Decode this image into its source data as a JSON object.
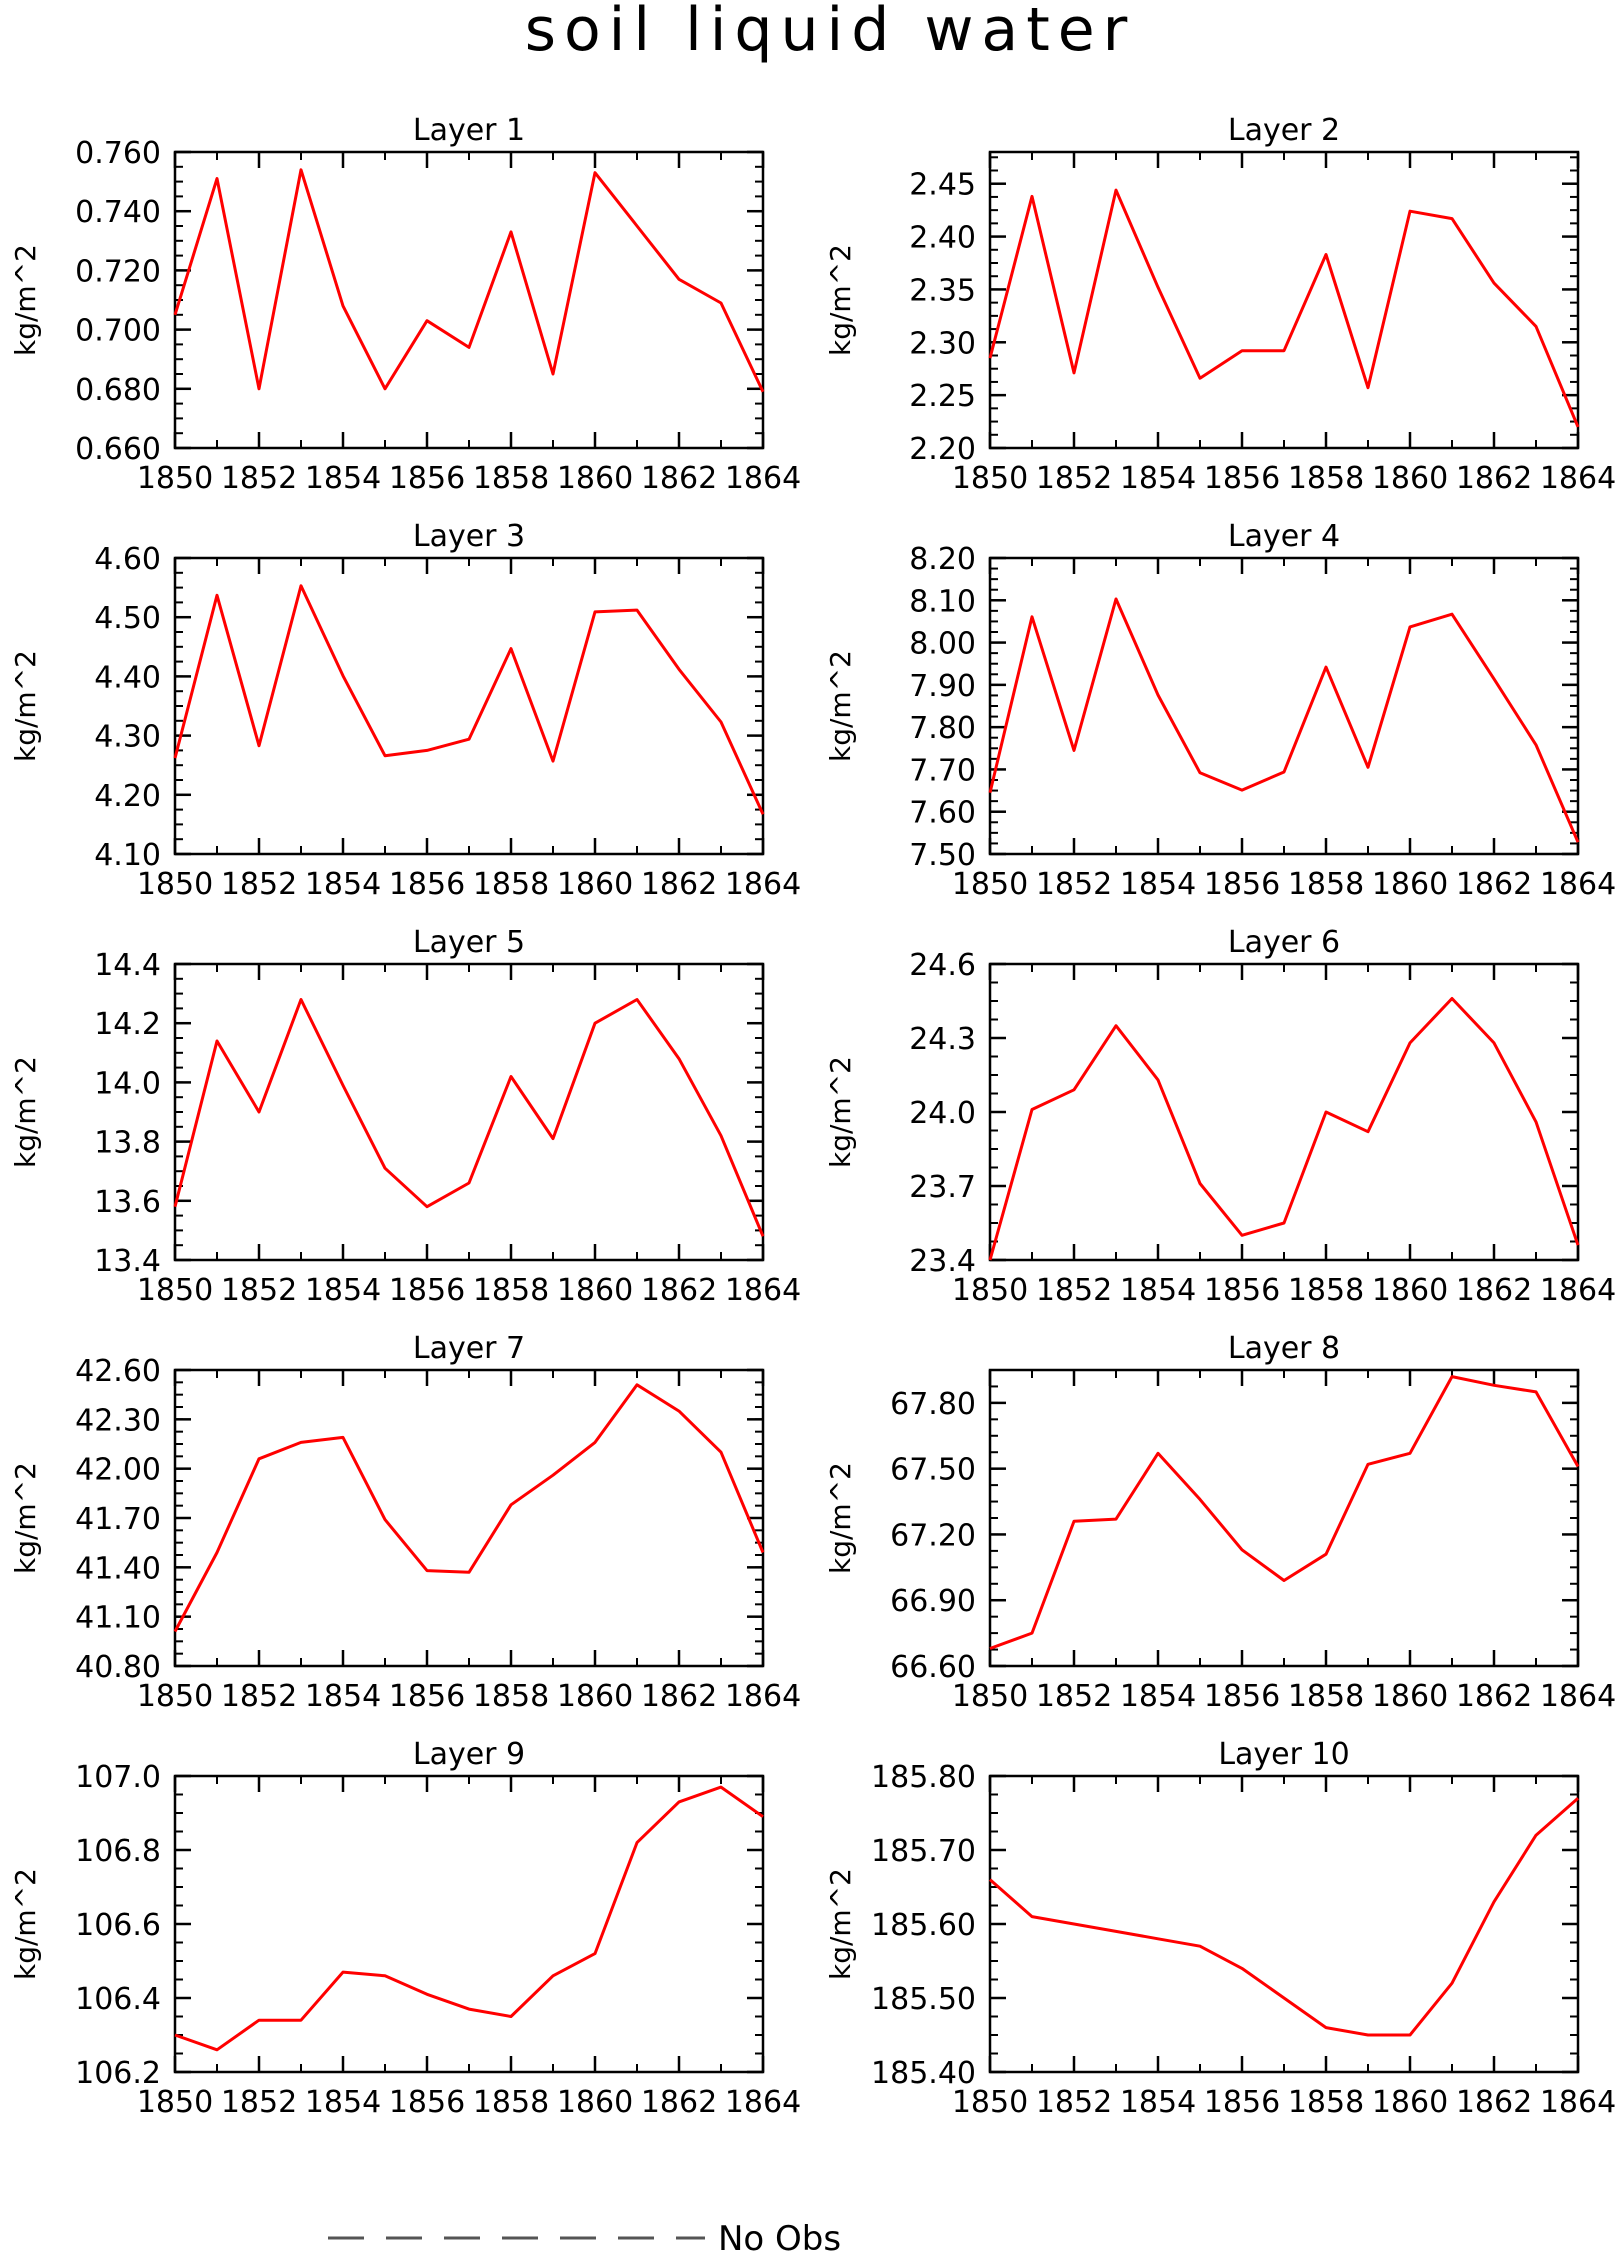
{
  "title": "soil liquid water",
  "legend": {
    "label": "No Obs",
    "placement": "bottom-center"
  },
  "colors": {
    "series": "#ff0000",
    "axis": "#000000",
    "legend_line": "#555555"
  },
  "chart_data": [
    {
      "type": "line",
      "title": "Layer 1",
      "ylabel": "kg/m^2",
      "xlabel": "",
      "x": [
        1850,
        1851,
        1852,
        1853,
        1854,
        1855,
        1856,
        1857,
        1858,
        1859,
        1860,
        1861,
        1862,
        1863,
        1864
      ],
      "xticks": [
        "1850",
        "1852",
        "1854",
        "1856",
        "1858",
        "1860",
        "1862",
        "1864"
      ],
      "xlim": [
        1850,
        1864
      ],
      "ylim": [
        0.66,
        0.76
      ],
      "yticks": [
        "0.660",
        "0.680",
        "0.700",
        "0.720",
        "0.740",
        "0.760"
      ],
      "yminor": 0.005,
      "series": [
        {
          "values": [
            0.705,
            0.751,
            0.68,
            0.754,
            0.708,
            0.68,
            0.703,
            0.694,
            0.733,
            0.685,
            0.753,
            0.735,
            0.717,
            0.709,
            0.679
          ]
        }
      ]
    },
    {
      "type": "line",
      "title": "Layer 2",
      "ylabel": "kg/m^2",
      "xlabel": "",
      "x": [
        1850,
        1851,
        1852,
        1853,
        1854,
        1855,
        1856,
        1857,
        1858,
        1859,
        1860,
        1861,
        1862,
        1863,
        1864
      ],
      "xticks": [
        "1850",
        "1852",
        "1854",
        "1856",
        "1858",
        "1860",
        "1862",
        "1864"
      ],
      "xlim": [
        1850,
        1864
      ],
      "ylim": [
        2.2,
        2.48
      ],
      "yticks": [
        "2.20",
        "2.25",
        "2.30",
        "2.35",
        "2.40",
        "2.45"
      ],
      "yminor": 0.0125,
      "series": [
        {
          "values": [
            2.285,
            2.438,
            2.271,
            2.444,
            2.352,
            2.266,
            2.292,
            2.292,
            2.383,
            2.257,
            2.424,
            2.417,
            2.356,
            2.315,
            2.22
          ]
        }
      ]
    },
    {
      "type": "line",
      "title": "Layer 3",
      "ylabel": "kg/m^2",
      "xlabel": "",
      "x": [
        1850,
        1851,
        1852,
        1853,
        1854,
        1855,
        1856,
        1857,
        1858,
        1859,
        1860,
        1861,
        1862,
        1863,
        1864
      ],
      "xticks": [
        "1850",
        "1852",
        "1854",
        "1856",
        "1858",
        "1860",
        "1862",
        "1864"
      ],
      "xlim": [
        1850,
        1864
      ],
      "ylim": [
        4.1,
        4.6
      ],
      "yticks": [
        "4.10",
        "4.20",
        "4.30",
        "4.40",
        "4.50",
        "4.60"
      ],
      "yminor": 0.025,
      "series": [
        {
          "values": [
            4.262,
            4.537,
            4.283,
            4.553,
            4.401,
            4.266,
            4.275,
            4.294,
            4.447,
            4.257,
            4.509,
            4.512,
            4.412,
            4.323,
            4.167
          ]
        }
      ]
    },
    {
      "type": "line",
      "title": "Layer 4",
      "ylabel": "kg/m^2",
      "xlabel": "",
      "x": [
        1850,
        1851,
        1852,
        1853,
        1854,
        1855,
        1856,
        1857,
        1858,
        1859,
        1860,
        1861,
        1862,
        1863,
        1864
      ],
      "xticks": [
        "1850",
        "1852",
        "1854",
        "1856",
        "1858",
        "1860",
        "1862",
        "1864"
      ],
      "xlim": [
        1850,
        1864
      ],
      "ylim": [
        7.5,
        8.2
      ],
      "yticks": [
        "7.50",
        "7.60",
        "7.70",
        "7.80",
        "7.90",
        "8.00",
        "8.10",
        "8.20"
      ],
      "yminor": 0.025,
      "series": [
        {
          "values": [
            7.645,
            8.061,
            7.745,
            8.103,
            7.876,
            7.692,
            7.651,
            7.694,
            7.942,
            7.705,
            8.037,
            8.067,
            7.914,
            7.758,
            7.528
          ]
        }
      ]
    },
    {
      "type": "line",
      "title": "Layer 5",
      "ylabel": "kg/m^2",
      "xlabel": "",
      "x": [
        1850,
        1851,
        1852,
        1853,
        1854,
        1855,
        1856,
        1857,
        1858,
        1859,
        1860,
        1861,
        1862,
        1863,
        1864
      ],
      "xticks": [
        "1850",
        "1852",
        "1854",
        "1856",
        "1858",
        "1860",
        "1862",
        "1864"
      ],
      "xlim": [
        1850,
        1864
      ],
      "ylim": [
        13.4,
        14.4
      ],
      "yticks": [
        "13.4",
        "13.6",
        "13.8",
        "14.0",
        "14.2",
        "14.4"
      ],
      "yminor": 0.05,
      "series": [
        {
          "values": [
            13.58,
            14.14,
            13.9,
            14.28,
            13.99,
            13.71,
            13.58,
            13.66,
            14.02,
            13.81,
            14.2,
            14.28,
            14.08,
            13.82,
            13.48
          ]
        }
      ]
    },
    {
      "type": "line",
      "title": "Layer 6",
      "ylabel": "kg/m^2",
      "xlabel": "",
      "x": [
        1850,
        1851,
        1852,
        1853,
        1854,
        1855,
        1856,
        1857,
        1858,
        1859,
        1860,
        1861,
        1862,
        1863,
        1864
      ],
      "xticks": [
        "1850",
        "1852",
        "1854",
        "1856",
        "1858",
        "1860",
        "1862",
        "1864"
      ],
      "xlim": [
        1850,
        1864
      ],
      "ylim": [
        23.4,
        24.6
      ],
      "yticks": [
        "23.4",
        "23.7",
        "24.0",
        "24.3",
        "24.6"
      ],
      "yminor": 0.075,
      "series": [
        {
          "values": [
            23.4,
            24.01,
            24.09,
            24.35,
            24.13,
            23.71,
            23.5,
            23.55,
            24.0,
            23.92,
            24.28,
            24.46,
            24.28,
            23.96,
            23.46
          ]
        }
      ]
    },
    {
      "type": "line",
      "title": "Layer 7",
      "ylabel": "kg/m^2",
      "xlabel": "",
      "x": [
        1850,
        1851,
        1852,
        1853,
        1854,
        1855,
        1856,
        1857,
        1858,
        1859,
        1860,
        1861,
        1862,
        1863,
        1864
      ],
      "xticks": [
        "1850",
        "1852",
        "1854",
        "1856",
        "1858",
        "1860",
        "1862",
        "1864"
      ],
      "xlim": [
        1850,
        1864
      ],
      "ylim": [
        40.8,
        42.6
      ],
      "yticks": [
        "40.80",
        "41.10",
        "41.40",
        "41.70",
        "42.00",
        "42.30",
        "42.60"
      ],
      "yminor": 0.075,
      "series": [
        {
          "values": [
            41.01,
            41.49,
            42.06,
            42.16,
            42.19,
            41.69,
            41.38,
            41.37,
            41.78,
            41.96,
            42.16,
            42.51,
            42.35,
            42.1,
            41.49
          ]
        }
      ]
    },
    {
      "type": "line",
      "title": "Layer 8",
      "ylabel": "kg/m^2",
      "xlabel": "",
      "x": [
        1850,
        1851,
        1852,
        1853,
        1854,
        1855,
        1856,
        1857,
        1858,
        1859,
        1860,
        1861,
        1862,
        1863,
        1864
      ],
      "xticks": [
        "1850",
        "1852",
        "1854",
        "1856",
        "1858",
        "1860",
        "1862",
        "1864"
      ],
      "xlim": [
        1850,
        1864
      ],
      "ylim": [
        66.6,
        67.95
      ],
      "yticks": [
        "66.60",
        "66.90",
        "67.20",
        "67.50",
        "67.80"
      ],
      "yminor": 0.075,
      "series": [
        {
          "values": [
            66.68,
            66.75,
            67.26,
            67.27,
            67.57,
            67.36,
            67.13,
            66.99,
            67.11,
            67.52,
            67.57,
            67.92,
            67.88,
            67.85,
            67.51
          ]
        }
      ]
    },
    {
      "type": "line",
      "title": "Layer 9",
      "ylabel": "kg/m^2",
      "xlabel": "",
      "x": [
        1850,
        1851,
        1852,
        1853,
        1854,
        1855,
        1856,
        1857,
        1858,
        1859,
        1860,
        1861,
        1862,
        1863,
        1864
      ],
      "xticks": [
        "1850",
        "1852",
        "1854",
        "1856",
        "1858",
        "1860",
        "1862",
        "1864"
      ],
      "xlim": [
        1850,
        1864
      ],
      "ylim": [
        106.2,
        107.0
      ],
      "yticks": [
        "106.2",
        "106.4",
        "106.6",
        "106.8",
        "107.0"
      ],
      "yminor": 0.05,
      "series": [
        {
          "values": [
            106.3,
            106.26,
            106.34,
            106.34,
            106.47,
            106.46,
            106.41,
            106.37,
            106.35,
            106.46,
            106.52,
            106.82,
            106.93,
            106.97,
            106.89
          ]
        }
      ]
    },
    {
      "type": "line",
      "title": "Layer 10",
      "ylabel": "kg/m^2",
      "xlabel": "",
      "x": [
        1850,
        1851,
        1852,
        1853,
        1854,
        1855,
        1856,
        1857,
        1858,
        1859,
        1860,
        1861,
        1862,
        1863,
        1864
      ],
      "xticks": [
        "1850",
        "1852",
        "1854",
        "1856",
        "1858",
        "1860",
        "1862",
        "1864"
      ],
      "xlim": [
        1850,
        1864
      ],
      "ylim": [
        185.4,
        185.8
      ],
      "yticks": [
        "185.40",
        "185.50",
        "185.60",
        "185.70",
        "185.80"
      ],
      "yminor": 0.025,
      "series": [
        {
          "values": [
            185.66,
            185.61,
            185.6,
            185.59,
            185.58,
            185.57,
            185.54,
            185.5,
            185.46,
            185.45,
            185.45,
            185.52,
            185.63,
            185.72,
            185.77
          ]
        }
      ]
    }
  ]
}
